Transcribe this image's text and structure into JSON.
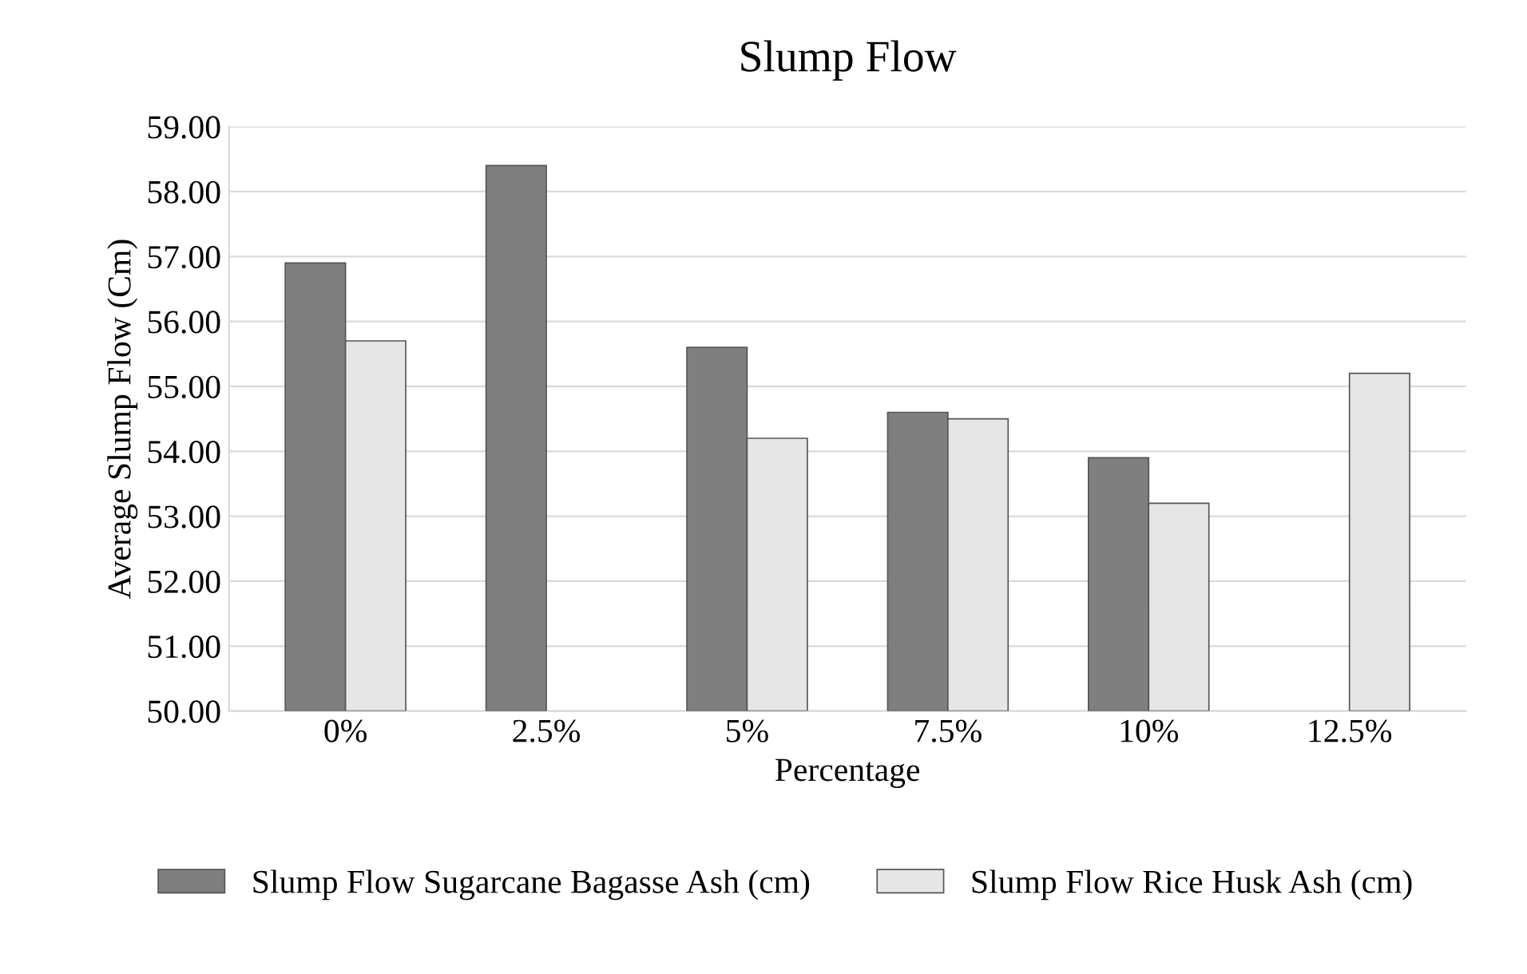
{
  "chart_data": {
    "type": "bar",
    "title": "Slump Flow",
    "xlabel": "Percentage",
    "ylabel": "Average Slump Flow (Cm)",
    "categories": [
      "0%",
      "2.5%",
      "5%",
      "7.5%",
      "10%",
      "12.5%"
    ],
    "series": [
      {
        "name": "Slump Flow Sugarcane Bagasse Ash (cm)",
        "color": "#7f7f7f",
        "values": [
          56.9,
          58.4,
          55.6,
          54.6,
          53.9,
          null
        ]
      },
      {
        "name": "Slump Flow Rice Husk Ash (cm)",
        "color": "#e6e6e6",
        "values": [
          55.7,
          null,
          54.2,
          54.5,
          53.2,
          55.2
        ]
      }
    ],
    "ylim": [
      50,
      59
    ],
    "yticks": [
      {
        "value": 50,
        "label": "50.00"
      },
      {
        "value": 51,
        "label": "51.00"
      },
      {
        "value": 52,
        "label": "52.00"
      },
      {
        "value": 53,
        "label": "53.00"
      },
      {
        "value": 54,
        "label": "54.00"
      },
      {
        "value": 55,
        "label": "55.00"
      },
      {
        "value": 56,
        "label": "56.00"
      },
      {
        "value": 57,
        "label": "57.00"
      },
      {
        "value": 58,
        "label": "58.00"
      },
      {
        "value": 59,
        "label": "59.00"
      }
    ],
    "grid": "y",
    "legend": "bottom"
  }
}
